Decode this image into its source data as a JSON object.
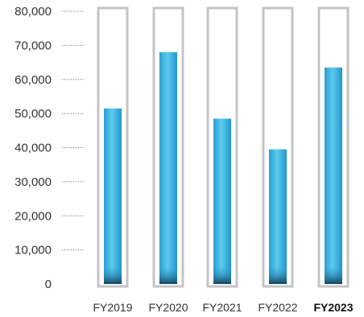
{
  "chart_data": {
    "type": "bar",
    "title": "",
    "xlabel": "",
    "ylabel": "",
    "categories": [
      "FY2019",
      "FY2020",
      "FY2021",
      "FY2022",
      "FY2023"
    ],
    "highlighted_category": "FY2023",
    "values": [
      51500,
      68000,
      48500,
      39500,
      63500
    ],
    "ylim": [
      0,
      80000
    ],
    "yticks": [
      0,
      10000,
      20000,
      30000,
      40000,
      50000,
      60000,
      70000,
      80000
    ],
    "ytick_labels": [
      "0",
      "10,000",
      "20,000",
      "30,000",
      "40,000",
      "50,000",
      "60,000",
      "70,000",
      "80,000"
    ],
    "grid": "dotted tick leaders",
    "legend": "none",
    "colors": {
      "bar_top": "#55c8ec",
      "bar_mid": "#2fa8dc",
      "bar_base": "#1a4d66",
      "frame": "#c4c4c4",
      "leader": "#777777"
    }
  }
}
